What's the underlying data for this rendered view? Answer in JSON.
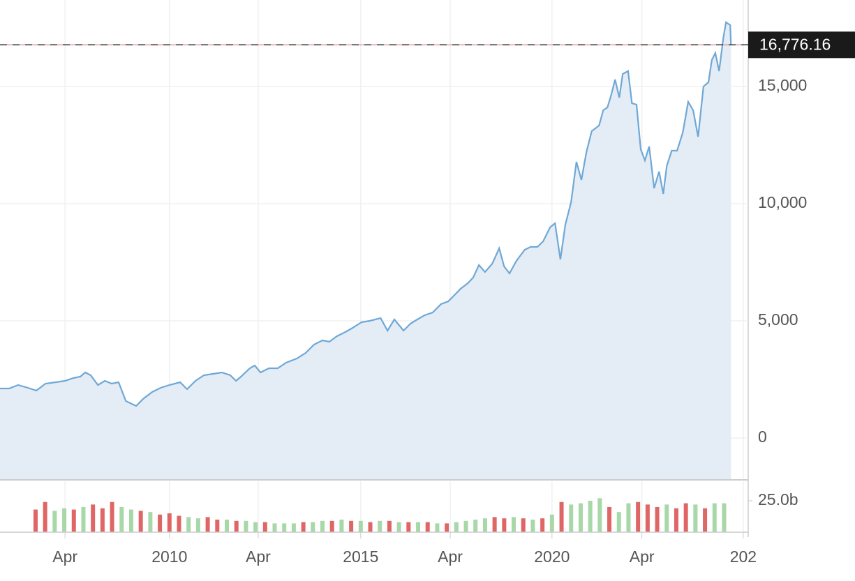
{
  "chart_data": [
    {
      "type": "line",
      "color": "#6fa8d6",
      "fill_color": "#e4edf6",
      "grid": true,
      "x": [
        2005.57,
        2005.81,
        2006.04,
        2006.3,
        2006.52,
        2006.76,
        2007.03,
        2007.27,
        2007.49,
        2007.67,
        2007.8,
        2007.94,
        2008.13,
        2008.31,
        2008.49,
        2008.67,
        2008.86,
        2009.13,
        2009.31,
        2009.55,
        2009.77,
        2010.0,
        2010.28,
        2010.46,
        2010.68,
        2010.9,
        2011.14,
        2011.37,
        2011.59,
        2011.74,
        2011.87,
        2012.1,
        2012.23,
        2012.38,
        2012.6,
        2012.83,
        2013.05,
        2013.33,
        2013.56,
        2013.78,
        2014.0,
        2014.18,
        2014.38,
        2014.6,
        2014.79,
        2015.02,
        2015.24,
        2015.52,
        2015.7,
        2015.88,
        2016.12,
        2016.3,
        2016.48,
        2016.67,
        2016.88,
        2017.1,
        2017.29,
        2017.47,
        2017.61,
        2017.8,
        2017.94,
        2018.09,
        2018.25,
        2018.44,
        2018.62,
        2018.75,
        2018.89,
        2019.07,
        2019.29,
        2019.44,
        2019.62,
        2019.77,
        2019.95,
        2020.08,
        2020.22,
        2020.35,
        2020.5,
        2020.64,
        2020.77,
        2020.9,
        2021.04,
        2021.23,
        2021.34,
        2021.45,
        2021.54,
        2021.65,
        2021.76,
        2021.85,
        2021.99,
        2022.09,
        2022.21,
        2022.32,
        2022.43,
        2022.54,
        2022.67,
        2022.8,
        2022.91,
        2023.0,
        2023.13,
        2023.27,
        2023.42,
        2023.56,
        2023.69,
        2023.82,
        2023.96,
        2024.09,
        2024.18,
        2024.27,
        2024.37,
        2024.48,
        2024.55,
        2024.66,
        2024.68
      ],
      "values": [
        2113,
        2113,
        2262,
        2143,
        2024,
        2321,
        2381,
        2440,
        2559,
        2619,
        2797,
        2678,
        2262,
        2440,
        2321,
        2381,
        1577,
        1369,
        1667,
        1964,
        2143,
        2262,
        2381,
        2083,
        2440,
        2678,
        2738,
        2797,
        2678,
        2440,
        2619,
        2976,
        3095,
        2797,
        2976,
        2976,
        3214,
        3393,
        3631,
        3988,
        4166,
        4107,
        4345,
        4524,
        4702,
        4940,
        5000,
        5119,
        4583,
        5059,
        4583,
        4880,
        5059,
        5238,
        5357,
        5714,
        5833,
        6131,
        6369,
        6607,
        6845,
        7381,
        7083,
        7440,
        8095,
        7321,
        7023,
        7559,
        8035,
        8154,
        8154,
        8393,
        8988,
        9166,
        7619,
        9107,
        10059,
        11786,
        11012,
        12202,
        13095,
        13333,
        13988,
        14107,
        14583,
        15298,
        14524,
        15536,
        15655,
        14286,
        14226,
        12321,
        11845,
        12440,
        10655,
        11369,
        10417,
        11607,
        12262,
        12262,
        13036,
        14345,
        13988,
        12857,
        15000,
        15179,
        16131,
        16428,
        15655,
        17083,
        17738,
        17619,
        16776.16
      ],
      "xlim": [
        2005.57,
        2025.13
      ],
      "ylim": [
        -1786,
        18690
      ],
      "yticks": [
        0,
        {
          "value": 5000,
          "label": "5,000"
        },
        {
          "value": 10000,
          "label": "10,000"
        },
        {
          "value": 15000,
          "label": "15,000"
        }
      ],
      "price_line": {
        "value": 16776.16,
        "label": "16,776.16"
      }
    },
    {
      "type": "bar",
      "x": [
        2006.5,
        2006.75,
        2007.0,
        2007.25,
        2007.5,
        2007.75,
        2008.0,
        2008.25,
        2008.5,
        2008.75,
        2009.0,
        2009.25,
        2009.5,
        2009.75,
        2010.0,
        2010.25,
        2010.5,
        2010.75,
        2011.0,
        2011.25,
        2011.5,
        2011.75,
        2012.0,
        2012.25,
        2012.5,
        2012.75,
        2013.0,
        2013.25,
        2013.5,
        2013.75,
        2014.0,
        2014.25,
        2014.5,
        2014.75,
        2015.0,
        2015.25,
        2015.5,
        2015.75,
        2016.0,
        2016.25,
        2016.5,
        2016.75,
        2017.0,
        2017.25,
        2017.5,
        2017.75,
        2018.0,
        2018.25,
        2018.5,
        2018.75,
        2019.0,
        2019.25,
        2019.5,
        2019.75,
        2020.0,
        2020.25,
        2020.5,
        2020.75,
        2021.0,
        2021.25,
        2021.5,
        2021.75,
        2022.0,
        2022.25,
        2022.5,
        2022.75,
        2023.0,
        2023.25,
        2023.5,
        2023.75,
        2024.0,
        2024.25,
        2024.5
      ],
      "values": [
        18,
        24,
        17,
        19,
        18,
        20,
        22,
        19,
        24,
        20,
        18,
        17,
        16,
        14,
        15,
        13,
        12,
        11,
        12,
        10,
        10,
        9,
        9,
        8,
        8,
        7,
        7,
        7,
        8,
        8,
        9,
        9,
        10,
        9,
        9,
        8,
        9,
        9,
        8,
        8,
        8,
        8,
        7,
        7,
        8,
        9,
        10,
        11,
        12,
        11,
        12,
        11,
        10,
        11,
        14,
        24,
        22,
        23,
        25,
        27,
        20,
        16,
        23,
        24,
        22,
        20,
        22,
        19,
        23,
        22,
        19,
        23,
        23
      ],
      "colors": [
        "#e06666",
        "#e06666",
        "#a8d8a8",
        "#a8d8a8",
        "#e06666",
        "#a8d8a8",
        "#e06666",
        "#e06666",
        "#e06666",
        "#a8d8a8",
        "#a8d8a8",
        "#e06666",
        "#a8d8a8",
        "#e06666",
        "#e06666",
        "#e06666",
        "#a8d8a8",
        "#a8d8a8",
        "#e06666",
        "#e06666",
        "#a8d8a8",
        "#e06666",
        "#a8d8a8",
        "#a8d8a8",
        "#e06666",
        "#a8d8a8",
        "#a8d8a8",
        "#a8d8a8",
        "#e06666",
        "#a8d8a8",
        "#a8d8a8",
        "#e06666",
        "#a8d8a8",
        "#e06666",
        "#a8d8a8",
        "#e06666",
        "#a8d8a8",
        "#e06666",
        "#a8d8a8",
        "#e06666",
        "#a8d8a8",
        "#e06666",
        "#a8d8a8",
        "#e06666",
        "#a8d8a8",
        "#a8d8a8",
        "#a8d8a8",
        "#a8d8a8",
        "#e06666",
        "#e06666",
        "#a8d8a8",
        "#e06666",
        "#a8d8a8",
        "#e06666",
        "#a8d8a8",
        "#e06666",
        "#a8d8a8",
        "#a8d8a8",
        "#a8d8a8",
        "#a8d8a8",
        "#e06666",
        "#a8d8a8",
        "#a8d8a8",
        "#e06666",
        "#e06666",
        "#e06666",
        "#a8d8a8",
        "#e06666",
        "#e06666",
        "#a8d8a8",
        "#e06666",
        "#a8d8a8",
        "#a8d8a8"
      ],
      "xlim": [
        2005.57,
        2025.13
      ],
      "ylim": [
        0,
        40.5
      ],
      "yticks": [
        {
          "value": 25,
          "label": "25.0b"
        }
      ],
      "xticks": [
        {
          "value": 2007.27,
          "label": "Apr"
        },
        2010,
        {
          "value": 2012.32,
          "label": "Apr"
        },
        2015,
        {
          "value": 2017.34,
          "label": "Apr"
        },
        2020,
        {
          "value": 2022.35,
          "label": "Apr"
        },
        {
          "value": 2025,
          "label": "202"
        }
      ]
    }
  ]
}
